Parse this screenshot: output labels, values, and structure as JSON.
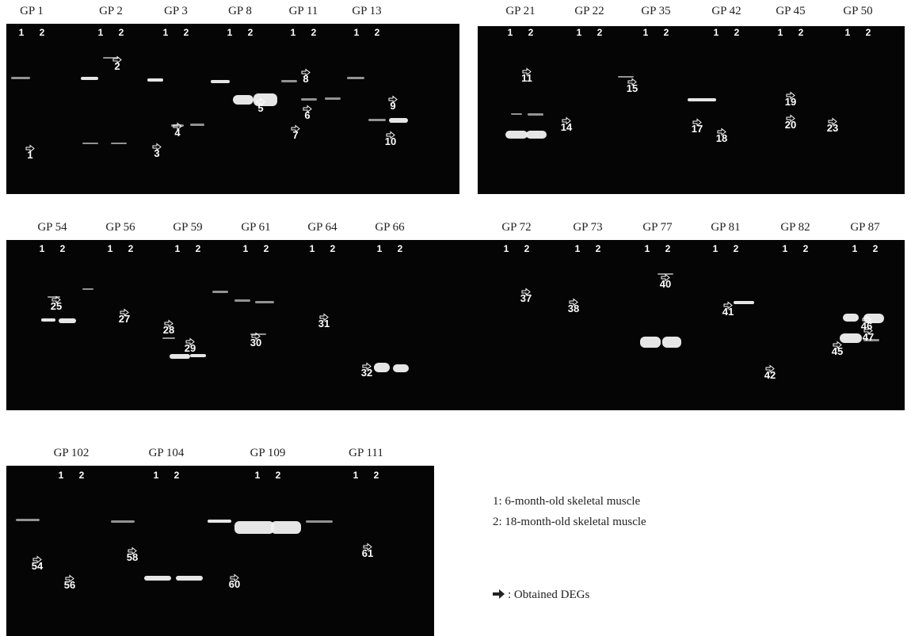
{
  "panels": [
    {
      "groups": [
        {
          "label": "GP 1",
          "lanes": [
            "1",
            "2"
          ]
        },
        {
          "label": "GP 2",
          "lanes": [
            "1",
            "2"
          ]
        },
        {
          "label": "GP 3",
          "lanes": [
            "1",
            "2"
          ]
        },
        {
          "label": "GP 8",
          "lanes": [
            "1",
            "2"
          ]
        },
        {
          "label": "GP 11",
          "lanes": [
            "1",
            "2"
          ]
        },
        {
          "label": "GP 13",
          "lanes": [
            "1",
            "2"
          ]
        }
      ],
      "markers": [
        "1",
        "2",
        "3",
        "4",
        "5",
        "6",
        "7",
        "8",
        "9",
        "10"
      ]
    },
    {
      "groups": [
        {
          "label": "GP 21",
          "lanes": [
            "1",
            "2"
          ]
        },
        {
          "label": "GP 22",
          "lanes": [
            "1",
            "2"
          ]
        },
        {
          "label": "GP 35",
          "lanes": [
            "1",
            "2"
          ]
        },
        {
          "label": "GP 42",
          "lanes": [
            "1",
            "2"
          ]
        },
        {
          "label": "GP 45",
          "lanes": [
            "1",
            "2"
          ]
        },
        {
          "label": "GP 50",
          "lanes": [
            "1",
            "2"
          ]
        }
      ],
      "markers": [
        "11",
        "14",
        "15",
        "17",
        "18",
        "19",
        "20",
        "23"
      ]
    },
    {
      "groups": [
        {
          "label": "GP 54",
          "lanes": [
            "1",
            "2"
          ]
        },
        {
          "label": "GP 56",
          "lanes": [
            "1",
            "2"
          ]
        },
        {
          "label": "GP 59",
          "lanes": [
            "1",
            "2"
          ]
        },
        {
          "label": "GP 61",
          "lanes": [
            "1",
            "2"
          ]
        },
        {
          "label": "GP 64",
          "lanes": [
            "1",
            "2"
          ]
        },
        {
          "label": "GP 66",
          "lanes": [
            "1",
            "2"
          ]
        }
      ],
      "markers": [
        "25",
        "27",
        "28",
        "29",
        "30",
        "31",
        "32"
      ]
    },
    {
      "groups": [
        {
          "label": "GP 72",
          "lanes": [
            "1",
            "2"
          ]
        },
        {
          "label": "GP 73",
          "lanes": [
            "1",
            "2"
          ]
        },
        {
          "label": "GP 77",
          "lanes": [
            "1",
            "2"
          ]
        },
        {
          "label": "GP 81",
          "lanes": [
            "1",
            "2"
          ]
        },
        {
          "label": "GP 82",
          "lanes": [
            "1",
            "2"
          ]
        },
        {
          "label": "GP 87",
          "lanes": [
            "1",
            "2"
          ]
        }
      ],
      "markers": [
        "37",
        "38",
        "40",
        "41",
        "42",
        "45",
        "46",
        "47"
      ]
    },
    {
      "groups": [
        {
          "label": "GP 102",
          "lanes": [
            "1",
            "2"
          ]
        },
        {
          "label": "GP 104",
          "lanes": [
            "1",
            "2"
          ]
        },
        {
          "label": "GP 109",
          "lanes": [
            "1",
            "2"
          ]
        },
        {
          "label": "GP 111",
          "lanes": [
            "1",
            "2"
          ]
        }
      ],
      "markers": [
        "54",
        "56",
        "58",
        "60",
        "61"
      ]
    }
  ],
  "legend": {
    "line1": "1: 6-month-old skeletal muscle",
    "line2": "2: 18-month-old skeletal muscle",
    "arrow_note": ": Obtained DEGs"
  }
}
